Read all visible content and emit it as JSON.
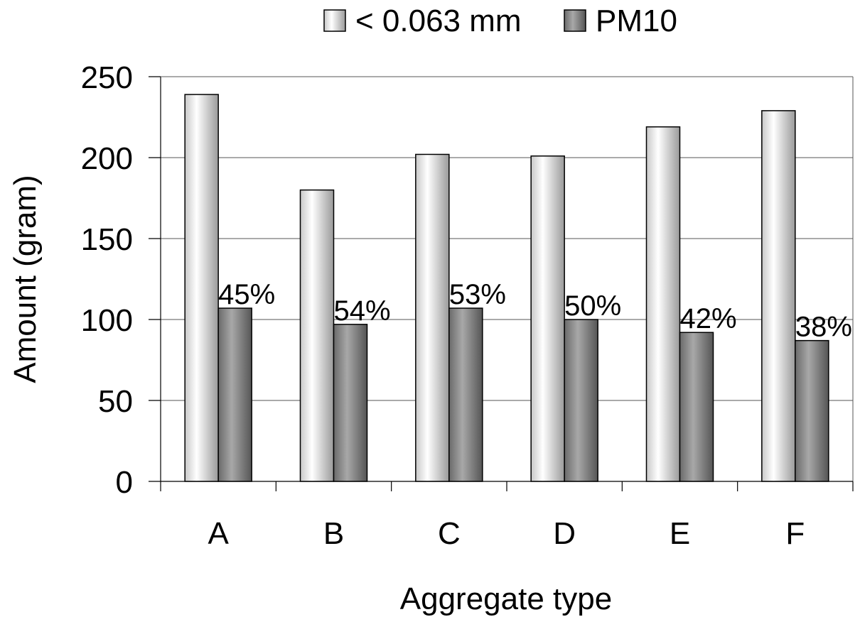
{
  "chart_data": {
    "type": "bar",
    "title": "",
    "xlabel": "Aggregate type",
    "ylabel": "Amount (gram)",
    "ylim": [
      0,
      250
    ],
    "yticks": [
      0,
      50,
      100,
      150,
      200,
      250
    ],
    "categories": [
      "A",
      "B",
      "C",
      "D",
      "E",
      "F"
    ],
    "series": [
      {
        "name": "< 0.063 mm",
        "values": [
          239,
          180,
          202,
          201,
          219,
          229
        ],
        "color": "#e6e6e6"
      },
      {
        "name": "PM10",
        "values": [
          107,
          97,
          107,
          100,
          92,
          87
        ],
        "color": "#8c8c8c"
      }
    ],
    "annotations": [
      "45%",
      "54%",
      "53%",
      "50%",
      "42%",
      "38%"
    ],
    "grid": true,
    "legend_position": "top"
  }
}
